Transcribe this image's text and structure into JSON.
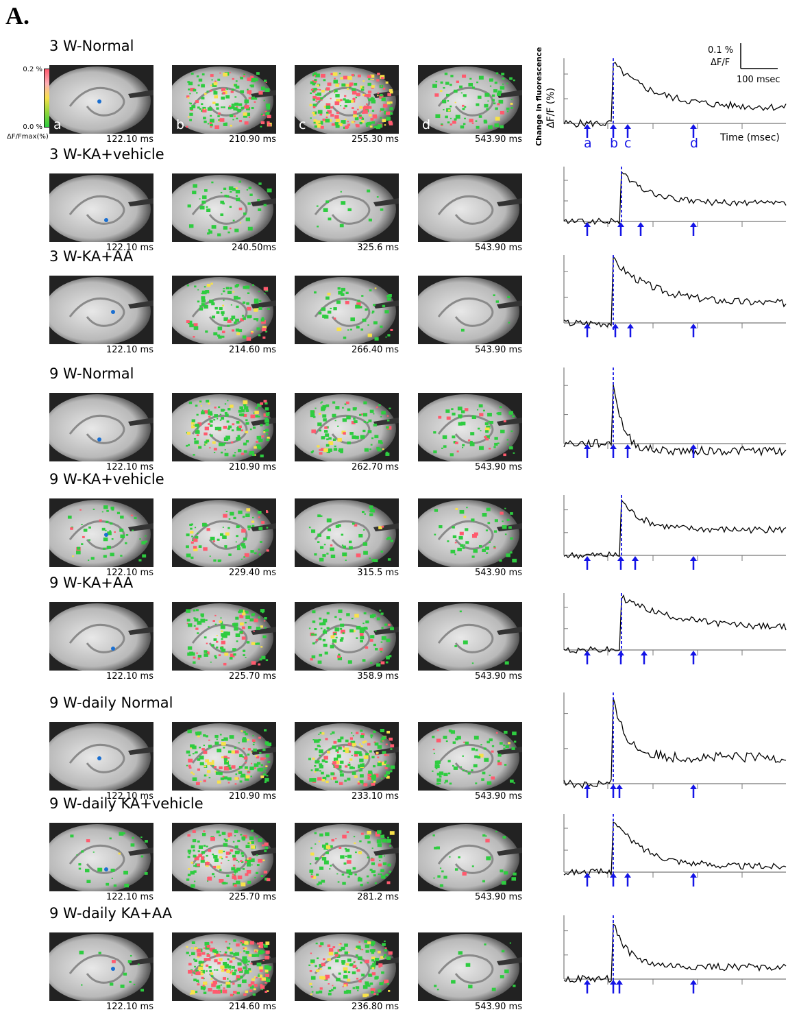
{
  "figure_label": "A.",
  "colorbar": {
    "max_label": "0.2 %",
    "min_label": "0.0 %",
    "unit_label": "ΔF/Fmax(%)",
    "colors": [
      "#ff5a6e",
      "#ffb0b8",
      "#f7e14a",
      "#8fd63a",
      "#2ecc40"
    ]
  },
  "panel_letters": [
    "a",
    "b",
    "c",
    "d"
  ],
  "marker_color": "#1a6fd1",
  "arrow_color": "#1414e6",
  "trace_labels": {
    "ylabel_line1": "Change in fluorescence",
    "ylabel_line2": "ΔF/F (%)",
    "xlabel": "Time (msec)",
    "scale_y": "0.1 %",
    "scale_y_unit": "ΔF/F",
    "scale_x": "100 msec",
    "arrow_letters": [
      "a",
      "b",
      "c",
      "d"
    ]
  },
  "groups": [
    {
      "title": "3 W-Normal",
      "times": [
        "122.10 ms",
        "210.90 ms",
        "255.30 ms",
        "543.90 ms"
      ],
      "activity": [
        0,
        0.6,
        0.9,
        0.35
      ]
    },
    {
      "title": "3 W-KA+vehicle",
      "times": [
        "122.10 ms",
        "240.50ms",
        "325.6 ms",
        "543.90 ms"
      ],
      "activity": [
        0,
        0.2,
        0.05,
        0
      ]
    },
    {
      "title": "3 W-KA+AA",
      "times": [
        "122.10 ms",
        "214.60 ms",
        "266.40 ms",
        "543.90 ms"
      ],
      "activity": [
        0,
        0.4,
        0.2,
        0.02
      ]
    },
    {
      "title": "9 W-Normal",
      "times": [
        "122.10 ms",
        "210.90 ms",
        "262.70 ms",
        "543.90 ms"
      ],
      "activity": [
        0,
        0.6,
        0.4,
        0.25
      ]
    },
    {
      "title": "9 W-KA+vehicle",
      "times": [
        "122.10 ms",
        "229.40 ms",
        "315.5 ms",
        "543.90 ms"
      ],
      "activity": [
        0.2,
        0.3,
        0.2,
        0.2
      ]
    },
    {
      "title": "9 W-KA+AA",
      "times": [
        "122.10 ms",
        "225.70 ms",
        "358.9 ms",
        "543.90 ms"
      ],
      "activity": [
        0,
        0.45,
        0.35,
        0.02
      ]
    },
    {
      "title": "9 W-daily Normal",
      "times": [
        "122.10 ms",
        "210.90 ms",
        "233.10 ms",
        "543.90 ms"
      ],
      "activity": [
        0,
        0.6,
        0.7,
        0.3
      ]
    },
    {
      "title": "9 W-daily KA+vehicle",
      "times": [
        "122.10 ms",
        "225.70 ms",
        "281.2 ms",
        "543.90 ms"
      ],
      "activity": [
        0.1,
        0.6,
        0.4,
        0.1
      ]
    },
    {
      "title": "9 W-daily KA+AA",
      "times": [
        "122.10 ms",
        "214.60 ms",
        "236.80 ms",
        "543.90 ms"
      ],
      "activity": [
        0.05,
        0.9,
        0.6,
        0.05
      ]
    }
  ]
}
